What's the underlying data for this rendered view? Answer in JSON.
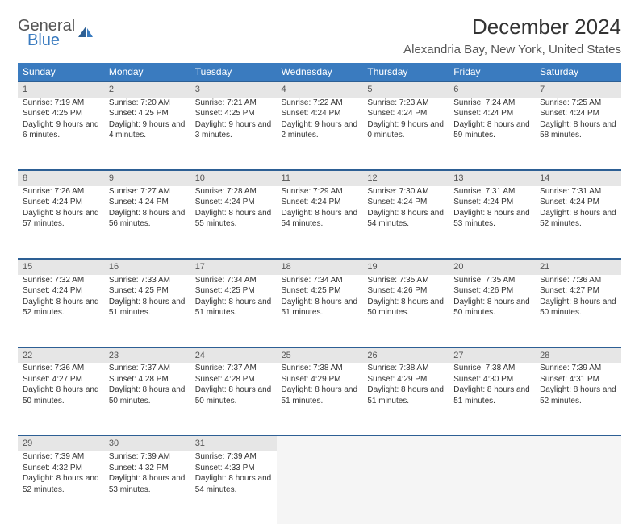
{
  "logo": {
    "word1": "General",
    "word2": "Blue"
  },
  "title": "December 2024",
  "location": "Alexandria Bay, New York, United States",
  "colors": {
    "header_bg": "#3a7bbf",
    "header_border": "#2d5f94",
    "daynum_bg": "#e6e6e6",
    "empty_bg": "#f5f5f5",
    "text": "#333333",
    "muted": "#555555"
  },
  "weekdays": [
    "Sunday",
    "Monday",
    "Tuesday",
    "Wednesday",
    "Thursday",
    "Friday",
    "Saturday"
  ],
  "weeks": [
    [
      {
        "num": "1",
        "sunrise": "7:19 AM",
        "sunset": "4:25 PM",
        "dayh": "9",
        "daym": "6"
      },
      {
        "num": "2",
        "sunrise": "7:20 AM",
        "sunset": "4:25 PM",
        "dayh": "9",
        "daym": "4"
      },
      {
        "num": "3",
        "sunrise": "7:21 AM",
        "sunset": "4:25 PM",
        "dayh": "9",
        "daym": "3"
      },
      {
        "num": "4",
        "sunrise": "7:22 AM",
        "sunset": "4:24 PM",
        "dayh": "9",
        "daym": "2"
      },
      {
        "num": "5",
        "sunrise": "7:23 AM",
        "sunset": "4:24 PM",
        "dayh": "9",
        "daym": "0"
      },
      {
        "num": "6",
        "sunrise": "7:24 AM",
        "sunset": "4:24 PM",
        "dayh": "8",
        "daym": "59"
      },
      {
        "num": "7",
        "sunrise": "7:25 AM",
        "sunset": "4:24 PM",
        "dayh": "8",
        "daym": "58"
      }
    ],
    [
      {
        "num": "8",
        "sunrise": "7:26 AM",
        "sunset": "4:24 PM",
        "dayh": "8",
        "daym": "57"
      },
      {
        "num": "9",
        "sunrise": "7:27 AM",
        "sunset": "4:24 PM",
        "dayh": "8",
        "daym": "56"
      },
      {
        "num": "10",
        "sunrise": "7:28 AM",
        "sunset": "4:24 PM",
        "dayh": "8",
        "daym": "55"
      },
      {
        "num": "11",
        "sunrise": "7:29 AM",
        "sunset": "4:24 PM",
        "dayh": "8",
        "daym": "54"
      },
      {
        "num": "12",
        "sunrise": "7:30 AM",
        "sunset": "4:24 PM",
        "dayh": "8",
        "daym": "54"
      },
      {
        "num": "13",
        "sunrise": "7:31 AM",
        "sunset": "4:24 PM",
        "dayh": "8",
        "daym": "53"
      },
      {
        "num": "14",
        "sunrise": "7:31 AM",
        "sunset": "4:24 PM",
        "dayh": "8",
        "daym": "52"
      }
    ],
    [
      {
        "num": "15",
        "sunrise": "7:32 AM",
        "sunset": "4:24 PM",
        "dayh": "8",
        "daym": "52"
      },
      {
        "num": "16",
        "sunrise": "7:33 AM",
        "sunset": "4:25 PM",
        "dayh": "8",
        "daym": "51"
      },
      {
        "num": "17",
        "sunrise": "7:34 AM",
        "sunset": "4:25 PM",
        "dayh": "8",
        "daym": "51"
      },
      {
        "num": "18",
        "sunrise": "7:34 AM",
        "sunset": "4:25 PM",
        "dayh": "8",
        "daym": "51"
      },
      {
        "num": "19",
        "sunrise": "7:35 AM",
        "sunset": "4:26 PM",
        "dayh": "8",
        "daym": "50"
      },
      {
        "num": "20",
        "sunrise": "7:35 AM",
        "sunset": "4:26 PM",
        "dayh": "8",
        "daym": "50"
      },
      {
        "num": "21",
        "sunrise": "7:36 AM",
        "sunset": "4:27 PM",
        "dayh": "8",
        "daym": "50"
      }
    ],
    [
      {
        "num": "22",
        "sunrise": "7:36 AM",
        "sunset": "4:27 PM",
        "dayh": "8",
        "daym": "50"
      },
      {
        "num": "23",
        "sunrise": "7:37 AM",
        "sunset": "4:28 PM",
        "dayh": "8",
        "daym": "50"
      },
      {
        "num": "24",
        "sunrise": "7:37 AM",
        "sunset": "4:28 PM",
        "dayh": "8",
        "daym": "50"
      },
      {
        "num": "25",
        "sunrise": "7:38 AM",
        "sunset": "4:29 PM",
        "dayh": "8",
        "daym": "51"
      },
      {
        "num": "26",
        "sunrise": "7:38 AM",
        "sunset": "4:29 PM",
        "dayh": "8",
        "daym": "51"
      },
      {
        "num": "27",
        "sunrise": "7:38 AM",
        "sunset": "4:30 PM",
        "dayh": "8",
        "daym": "51"
      },
      {
        "num": "28",
        "sunrise": "7:39 AM",
        "sunset": "4:31 PM",
        "dayh": "8",
        "daym": "52"
      }
    ],
    [
      {
        "num": "29",
        "sunrise": "7:39 AM",
        "sunset": "4:32 PM",
        "dayh": "8",
        "daym": "52"
      },
      {
        "num": "30",
        "sunrise": "7:39 AM",
        "sunset": "4:32 PM",
        "dayh": "8",
        "daym": "53"
      },
      {
        "num": "31",
        "sunrise": "7:39 AM",
        "sunset": "4:33 PM",
        "dayh": "8",
        "daym": "54"
      },
      null,
      null,
      null,
      null
    ]
  ]
}
